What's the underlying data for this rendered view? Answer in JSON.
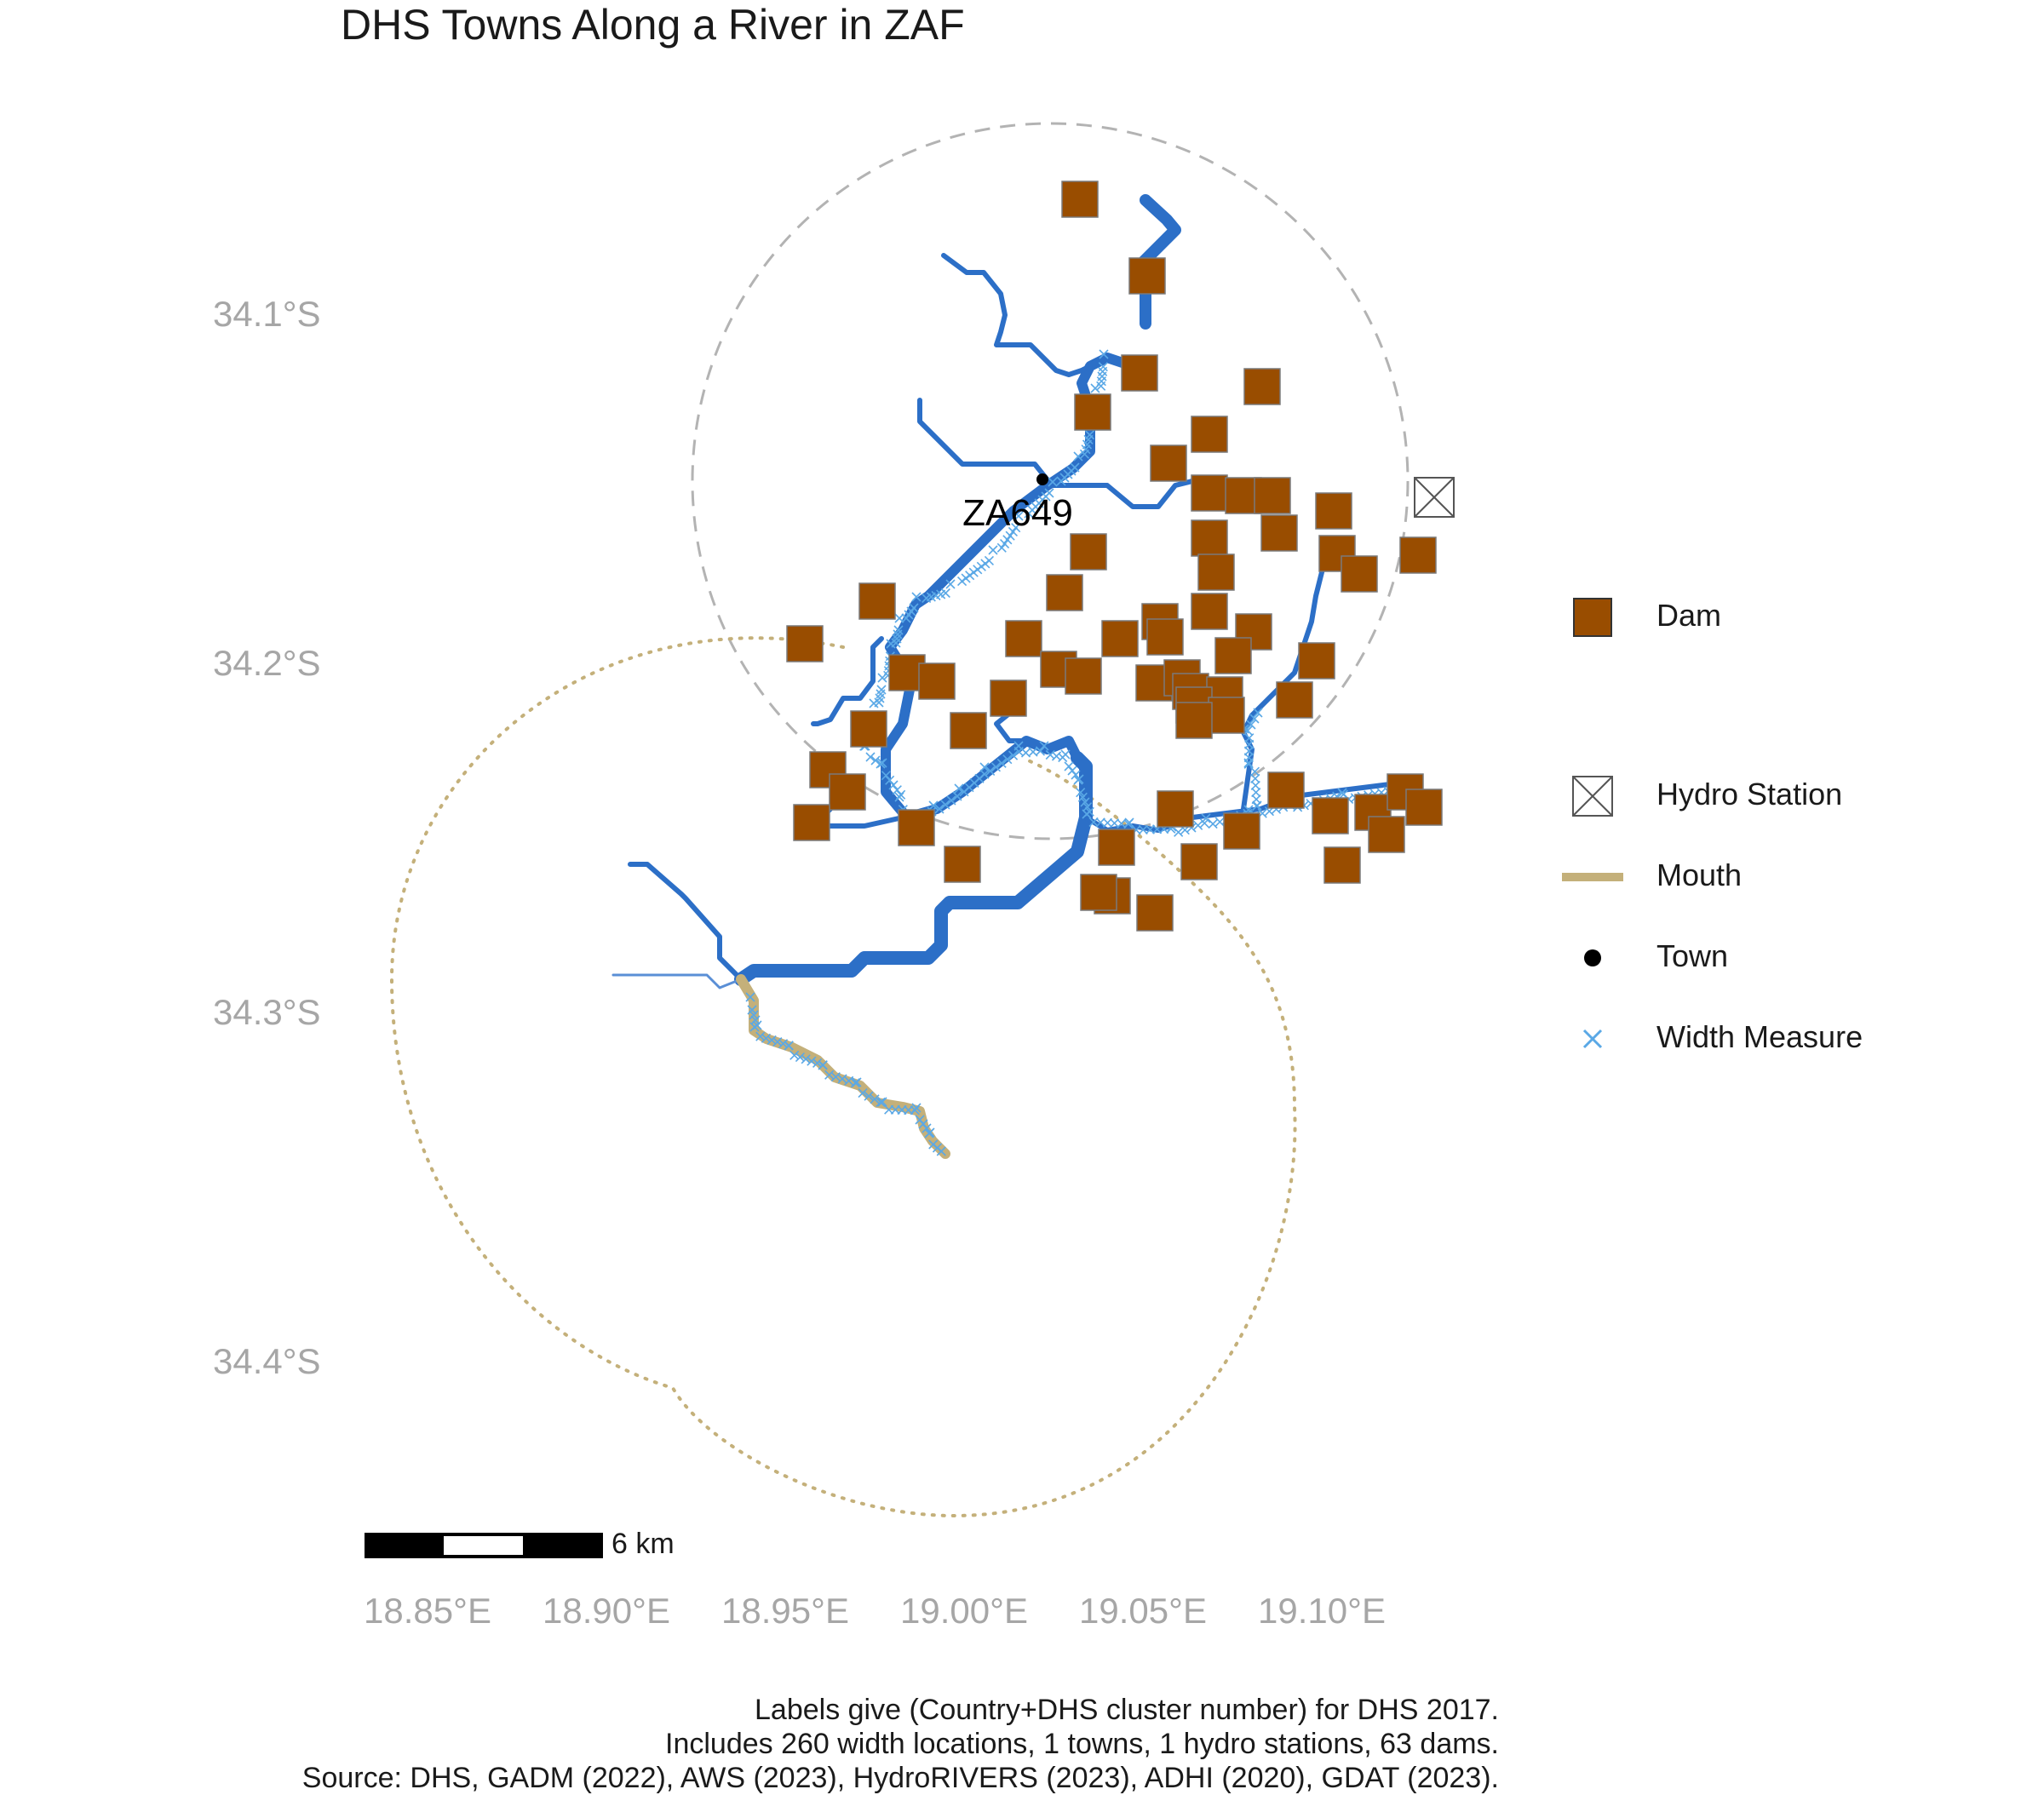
{
  "title": "DHS Towns Along a River in ZAF",
  "axes": {
    "lat_ticks": [
      "34.1°S",
      "34.2°S",
      "34.3°S",
      "34.4°S"
    ],
    "lon_ticks": [
      "18.85°E",
      "18.90°E",
      "18.95°E",
      "19.00°E",
      "19.05°E",
      "19.10°E"
    ]
  },
  "town": {
    "label": "ZA649"
  },
  "scalebar": {
    "label": "6 km"
  },
  "legend": {
    "dam": "Dam",
    "hydro": "Hydro Station",
    "mouth": "Mouth",
    "town": "Town",
    "width": "Width Measure"
  },
  "colors": {
    "dam_fill": "#994d00",
    "river": "#2c6fc7",
    "mouth": "#c4b07a",
    "width_marker": "#5aa8e6",
    "town_buffer": "#b3b3b3",
    "mouth_buffer": "#c4b07a"
  },
  "caption": {
    "line1": "Labels give (Country+DHS cluster number) for DHS 2017.",
    "line2": "Includes 260 width locations, 1 towns, 1 hydro stations, 63 dams.",
    "line3": "Source: DHS, GADM (2022), AWS (2023), HydroRIVERS (2023), ADHI (2020), GDAT (2023)."
  }
}
